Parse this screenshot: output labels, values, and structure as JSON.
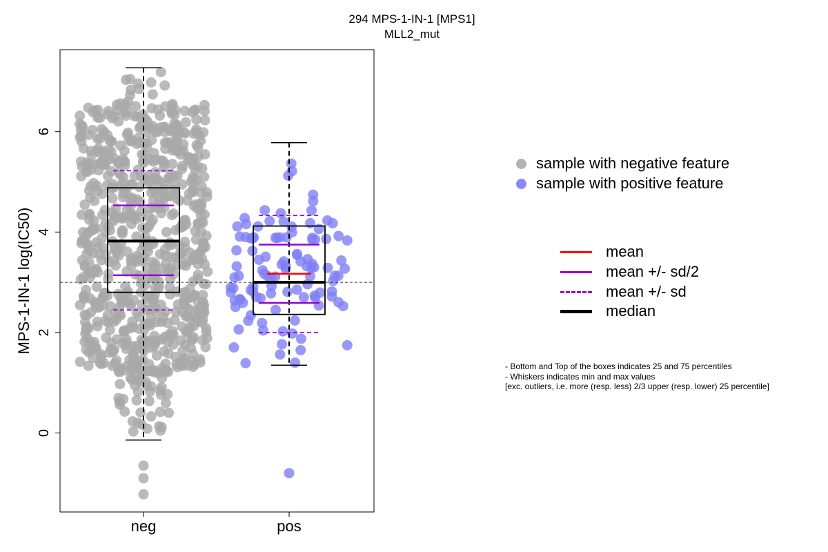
{
  "chart_data": {
    "type": "box-swarm",
    "title": "294 MPS-1-IN-1 [MPS1]",
    "subtitle": "MLL2_mut",
    "ylabel": "MPS-1-IN-1 log(IC50)",
    "xlabel": "",
    "categories": [
      "neg",
      "pos"
    ],
    "ylim": [
      -1.55,
      7.65
    ],
    "yticks": [
      0,
      2,
      4,
      6
    ],
    "reference_line": 3.0,
    "groups": [
      {
        "name": "neg",
        "color": "#a9a9a9",
        "box": {
          "q1": 2.8,
          "median": 3.82,
          "q3": 4.88,
          "whisker_low": -0.14,
          "whisker_high": 7.27
        },
        "mean": 3.83,
        "mean_plus_half_sd": 4.53,
        "mean_minus_half_sd": 3.14,
        "mean_plus_sd": 5.22,
        "mean_minus_sd": 2.45,
        "outliers": [
          -0.65,
          -0.9,
          -1.22
        ],
        "n_points": 780
      },
      {
        "name": "pos",
        "color": "#8080f5",
        "box": {
          "q1": 2.36,
          "median": 3.0,
          "q3": 4.12,
          "whisker_low": 1.35,
          "whisker_high": 5.78
        },
        "mean": 3.17,
        "mean_plus_half_sd": 3.75,
        "mean_minus_half_sd": 2.59,
        "mean_plus_sd": 4.33,
        "mean_minus_sd": 2.0,
        "outliers": [
          -0.8
        ],
        "n_points": 110
      }
    ],
    "legend_points": [
      {
        "label": "sample with negative feature",
        "color": "#b3b3b3"
      },
      {
        "label": "sample with positive feature",
        "color": "#8a8af7"
      }
    ],
    "legend_lines": [
      {
        "label": "mean",
        "color": "#ff0000",
        "style": "solid"
      },
      {
        "label": "mean +/- sd/2",
        "color": "#9400d3",
        "style": "solid"
      },
      {
        "label": "mean +/- sd",
        "color": "#9400d3",
        "style": "dashed"
      },
      {
        "label": "median",
        "color": "#000000",
        "style": "solid-thick"
      }
    ],
    "notes": [
      "- Bottom and Top of the boxes indicates 25 and 75 percentiles",
      "- Whiskers indicates min and max values",
      "[exc. outliers, i.e. more (resp. less) 2/3 upper (resp. lower) 25 percentile]"
    ]
  }
}
